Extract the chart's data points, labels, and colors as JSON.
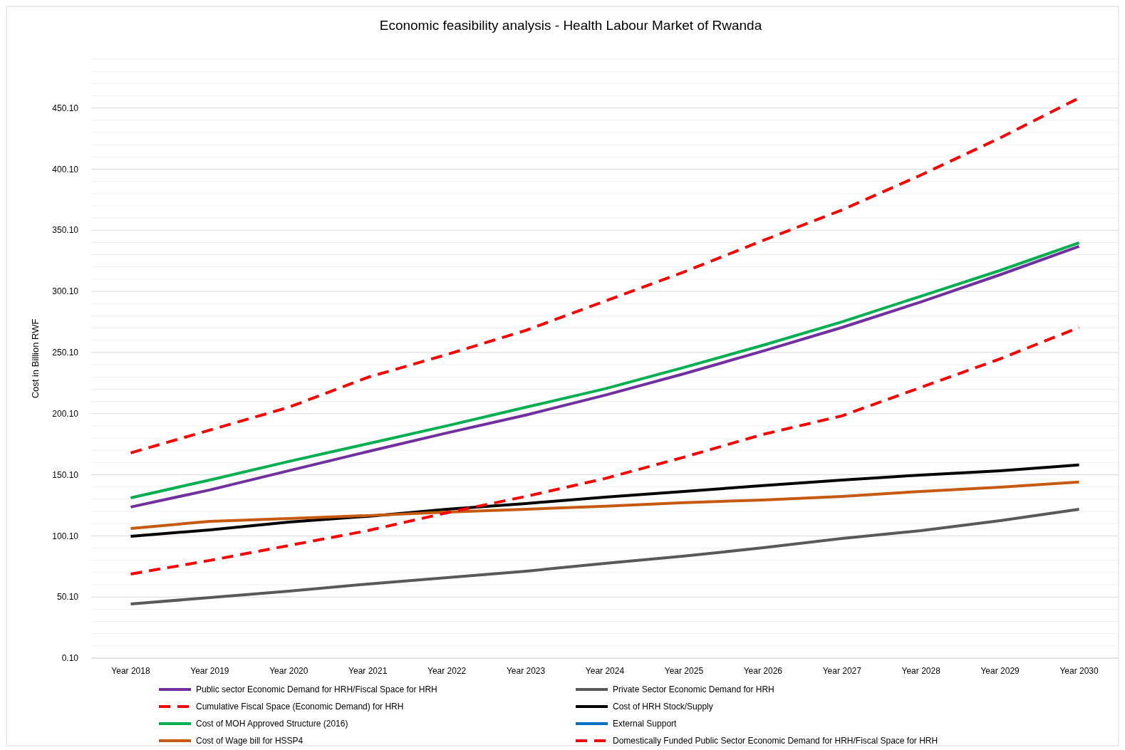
{
  "chart_data": {
    "type": "line",
    "title": "Economic feasibility analysis - Health Labour Market of Rwanda",
    "ylabel": "Cost in Billion RWF",
    "categories": [
      "Year 2018",
      "Year 2019",
      "Year 2020",
      "Year 2021",
      "Year 2022",
      "Year 2023",
      "Year 2024",
      "Year 2025",
      "Year 2026",
      "Year 2027",
      "Year 2028",
      "Year 2029",
      "Year 2030"
    ],
    "ylim": [
      0.1,
      490.1
    ],
    "yticks": [
      {
        "value": 0.1,
        "label": "0.10"
      },
      {
        "value": 10.1,
        "label": null
      },
      {
        "value": 20.1,
        "label": null
      },
      {
        "value": 30.1,
        "label": null
      },
      {
        "value": 40.1,
        "label": null
      },
      {
        "value": 50.1,
        "label": "50.10"
      },
      {
        "value": 60.1,
        "label": null
      },
      {
        "value": 70.1,
        "label": null
      },
      {
        "value": 80.1,
        "label": null
      },
      {
        "value": 90.1,
        "label": null
      },
      {
        "value": 100.1,
        "label": "100.10"
      },
      {
        "value": 110.1,
        "label": null
      },
      {
        "value": 120.1,
        "label": null
      },
      {
        "value": 130.1,
        "label": null
      },
      {
        "value": 140.1,
        "label": null
      },
      {
        "value": 150.1,
        "label": "150.10"
      },
      {
        "value": 160.1,
        "label": null
      },
      {
        "value": 170.1,
        "label": null
      },
      {
        "value": 180.1,
        "label": null
      },
      {
        "value": 190.1,
        "label": null
      },
      {
        "value": 200.1,
        "label": "200.10"
      },
      {
        "value": 210.1,
        "label": null
      },
      {
        "value": 220.1,
        "label": null
      },
      {
        "value": 230.1,
        "label": null
      },
      {
        "value": 240.1,
        "label": null
      },
      {
        "value": 250.1,
        "label": "250.10"
      },
      {
        "value": 260.1,
        "label": null
      },
      {
        "value": 270.1,
        "label": null
      },
      {
        "value": 280.1,
        "label": null
      },
      {
        "value": 290.1,
        "label": null
      },
      {
        "value": 300.1,
        "label": "300.10"
      },
      {
        "value": 310.1,
        "label": null
      },
      {
        "value": 320.1,
        "label": null
      },
      {
        "value": 330.1,
        "label": null
      },
      {
        "value": 340.1,
        "label": null
      },
      {
        "value": 350.1,
        "label": "350.10"
      },
      {
        "value": 360.1,
        "label": null
      },
      {
        "value": 370.1,
        "label": null
      },
      {
        "value": 380.1,
        "label": null
      },
      {
        "value": 390.1,
        "label": null
      },
      {
        "value": 400.1,
        "label": "400.10"
      },
      {
        "value": 410.1,
        "label": null
      },
      {
        "value": 420.1,
        "label": null
      },
      {
        "value": 430.1,
        "label": null
      },
      {
        "value": 440.1,
        "label": null
      },
      {
        "value": 450.1,
        "label": "450.10"
      },
      {
        "value": 460.1,
        "label": null
      },
      {
        "value": 470.1,
        "label": null
      },
      {
        "value": 480.1,
        "label": null
      },
      {
        "value": 490.1,
        "label": null
      }
    ],
    "grid": "y",
    "legend": "bottom",
    "line_style": "solid",
    "series": [
      {
        "name": "Public sector Economic Demand for HRH/Fiscal Space for HRH",
        "color": "#7030a0",
        "values": [
          123.7,
          137.7,
          153.4,
          169.1,
          184.3,
          198.9,
          215.2,
          232.7,
          251.3,
          270.6,
          291.5,
          313.7,
          337.0
        ]
      },
      {
        "name": "Private Sector Economic Demand for HRH",
        "color": "#595959",
        "values": [
          44.4,
          49.6,
          54.9,
          60.7,
          66.0,
          71.2,
          77.6,
          83.5,
          90.4,
          98.0,
          104.4,
          112.6,
          121.9
        ]
      },
      {
        "name": "Cumulative Fiscal Space  (Economic Demand) for HRH",
        "color": "#ff0000",
        "line_style": "dashed",
        "values": [
          168.0,
          186.6,
          205.3,
          229.8,
          248.4,
          268.2,
          292.1,
          316.0,
          341.7,
          366.7,
          395.3,
          425.6,
          458.3
        ]
      },
      {
        "name": "Cost of HRH Stock/Supply",
        "color": "#000000",
        "values": [
          99.8,
          105.0,
          111.4,
          116.1,
          121.9,
          126.6,
          131.8,
          136.5,
          141.2,
          145.8,
          149.9,
          153.4,
          158.1
        ]
      },
      {
        "name": "Cost of MOH Approved Structure (2016)",
        "color": "#00b050",
        "values": [
          131.2,
          145.8,
          161.0,
          175.5,
          190.1,
          205.3,
          220.4,
          237.9,
          256.0,
          275.2,
          296.2,
          317.2,
          339.9
        ]
      },
      {
        "name": "External Support",
        "color": "#0070c0",
        "values": [
          null,
          null,
          null,
          null,
          null,
          null,
          null,
          null,
          null,
          null,
          null,
          null,
          null
        ]
      },
      {
        "name": "Cost of Wage bill for HSSP4",
        "color": "#c55a11",
        "values": [
          106.2,
          112.0,
          114.3,
          116.7,
          119.6,
          121.9,
          124.3,
          127.2,
          129.5,
          132.4,
          136.5,
          140.0,
          144.1
        ]
      },
      {
        "name": "Domestically Funded Public Sector Economic Demand for HRH/Fiscal Space for HRH",
        "color": "#ff0000",
        "line_style": "dashed",
        "values": [
          68.9,
          80.0,
          92.2,
          104.4,
          119.0,
          132.4,
          147.0,
          164.5,
          183.1,
          198.3,
          221.6,
          244.9,
          270.6
        ]
      }
    ]
  }
}
